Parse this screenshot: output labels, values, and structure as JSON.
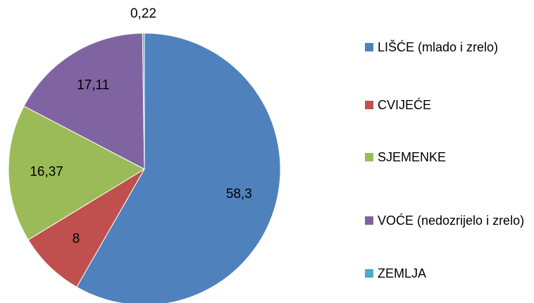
{
  "chart_data": {
    "type": "pie",
    "categories": [
      "LIŠĆE (mlado i zrelo)",
      "CVIJEĆE",
      "SJEMENKE",
      "VOĆE (nedozrijelo i zrelo)",
      "ZEMLJA"
    ],
    "values": [
      58.3,
      8,
      16.37,
      17.11,
      0.22
    ],
    "value_labels": [
      "58,3",
      "8",
      "16,37",
      "17,11",
      "0,22"
    ],
    "colors": [
      "#4f81bd",
      "#c0504d",
      "#9bbb59",
      "#8064a2",
      "#4bacc6"
    ],
    "legend": "right"
  }
}
